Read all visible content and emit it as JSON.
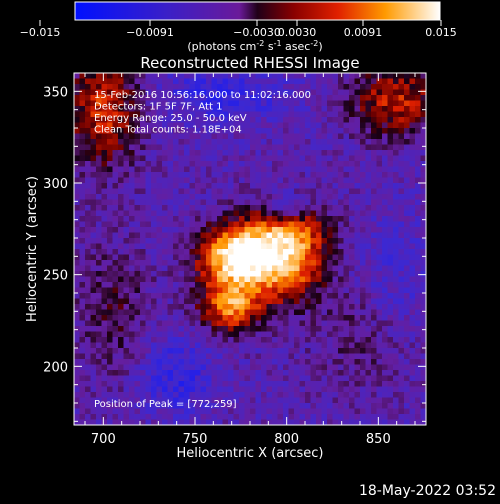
{
  "chart_data": {
    "type": "heatmap",
    "title": "Reconstructed RHESSI Image",
    "xlabel": "Heliocentric X (arcsec)",
    "ylabel": "Heliocentric Y (arcsec)",
    "xlim": [
      684,
      876
    ],
    "ylim": [
      168,
      360
    ],
    "x_ticks": [
      700,
      750,
      800,
      850
    ],
    "y_ticks": [
      200,
      250,
      300,
      350
    ],
    "colorbar": {
      "range": [
        -0.015,
        0.015
      ],
      "tick_labels": [
        "−0.015",
        "−0.0091",
        "−0.0030",
        "0.0030",
        "0.0091",
        "0.015"
      ],
      "label": "(photons cm",
      "label_sup1": "-2",
      "label_mid": " s",
      "label_sup2": "-1",
      "label_end": " asec",
      "label_sup3": "-2",
      "label_close": ")"
    },
    "annotations": [
      "15-Feb-2016 10:56:16.000 to 11:02:16.000",
      "Detectors: 1F 5F 7F, Att 1",
      "Energy Range: 25.0 - 50.0 keV",
      "Clean     Total counts: 1.18E+04"
    ],
    "peak_text": "Position of Peak = [772,259]",
    "peak": [
      772,
      259
    ],
    "footer": "18-May-2022 03:52"
  }
}
